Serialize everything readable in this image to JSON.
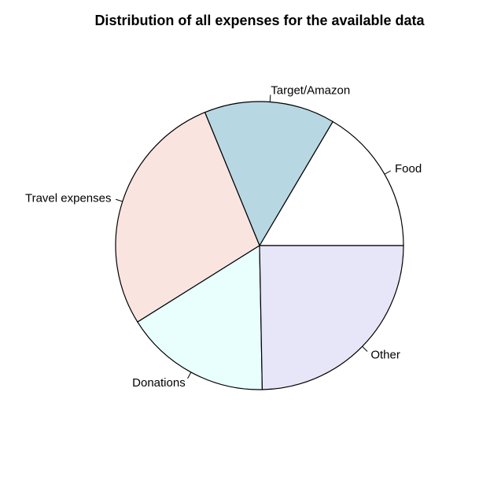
{
  "chart_data": {
    "type": "pie",
    "title": "Distribution of all expenses for the available data",
    "slices": [
      {
        "label": "Food",
        "value": 16.5,
        "color": "#ffffff"
      },
      {
        "label": "Target/Amazon",
        "value": 14.7,
        "color": "#b7d7e3"
      },
      {
        "label": "Travel expenses",
        "value": 27.7,
        "color": "#f9e4df"
      },
      {
        "label": "Donations",
        "value": 16.4,
        "color": "#e8fffe"
      },
      {
        "label": "Other",
        "value": 24.7,
        "color": "#e6e6f8"
      }
    ],
    "start_angle_deg": 0,
    "direction": "counterclockwise"
  }
}
